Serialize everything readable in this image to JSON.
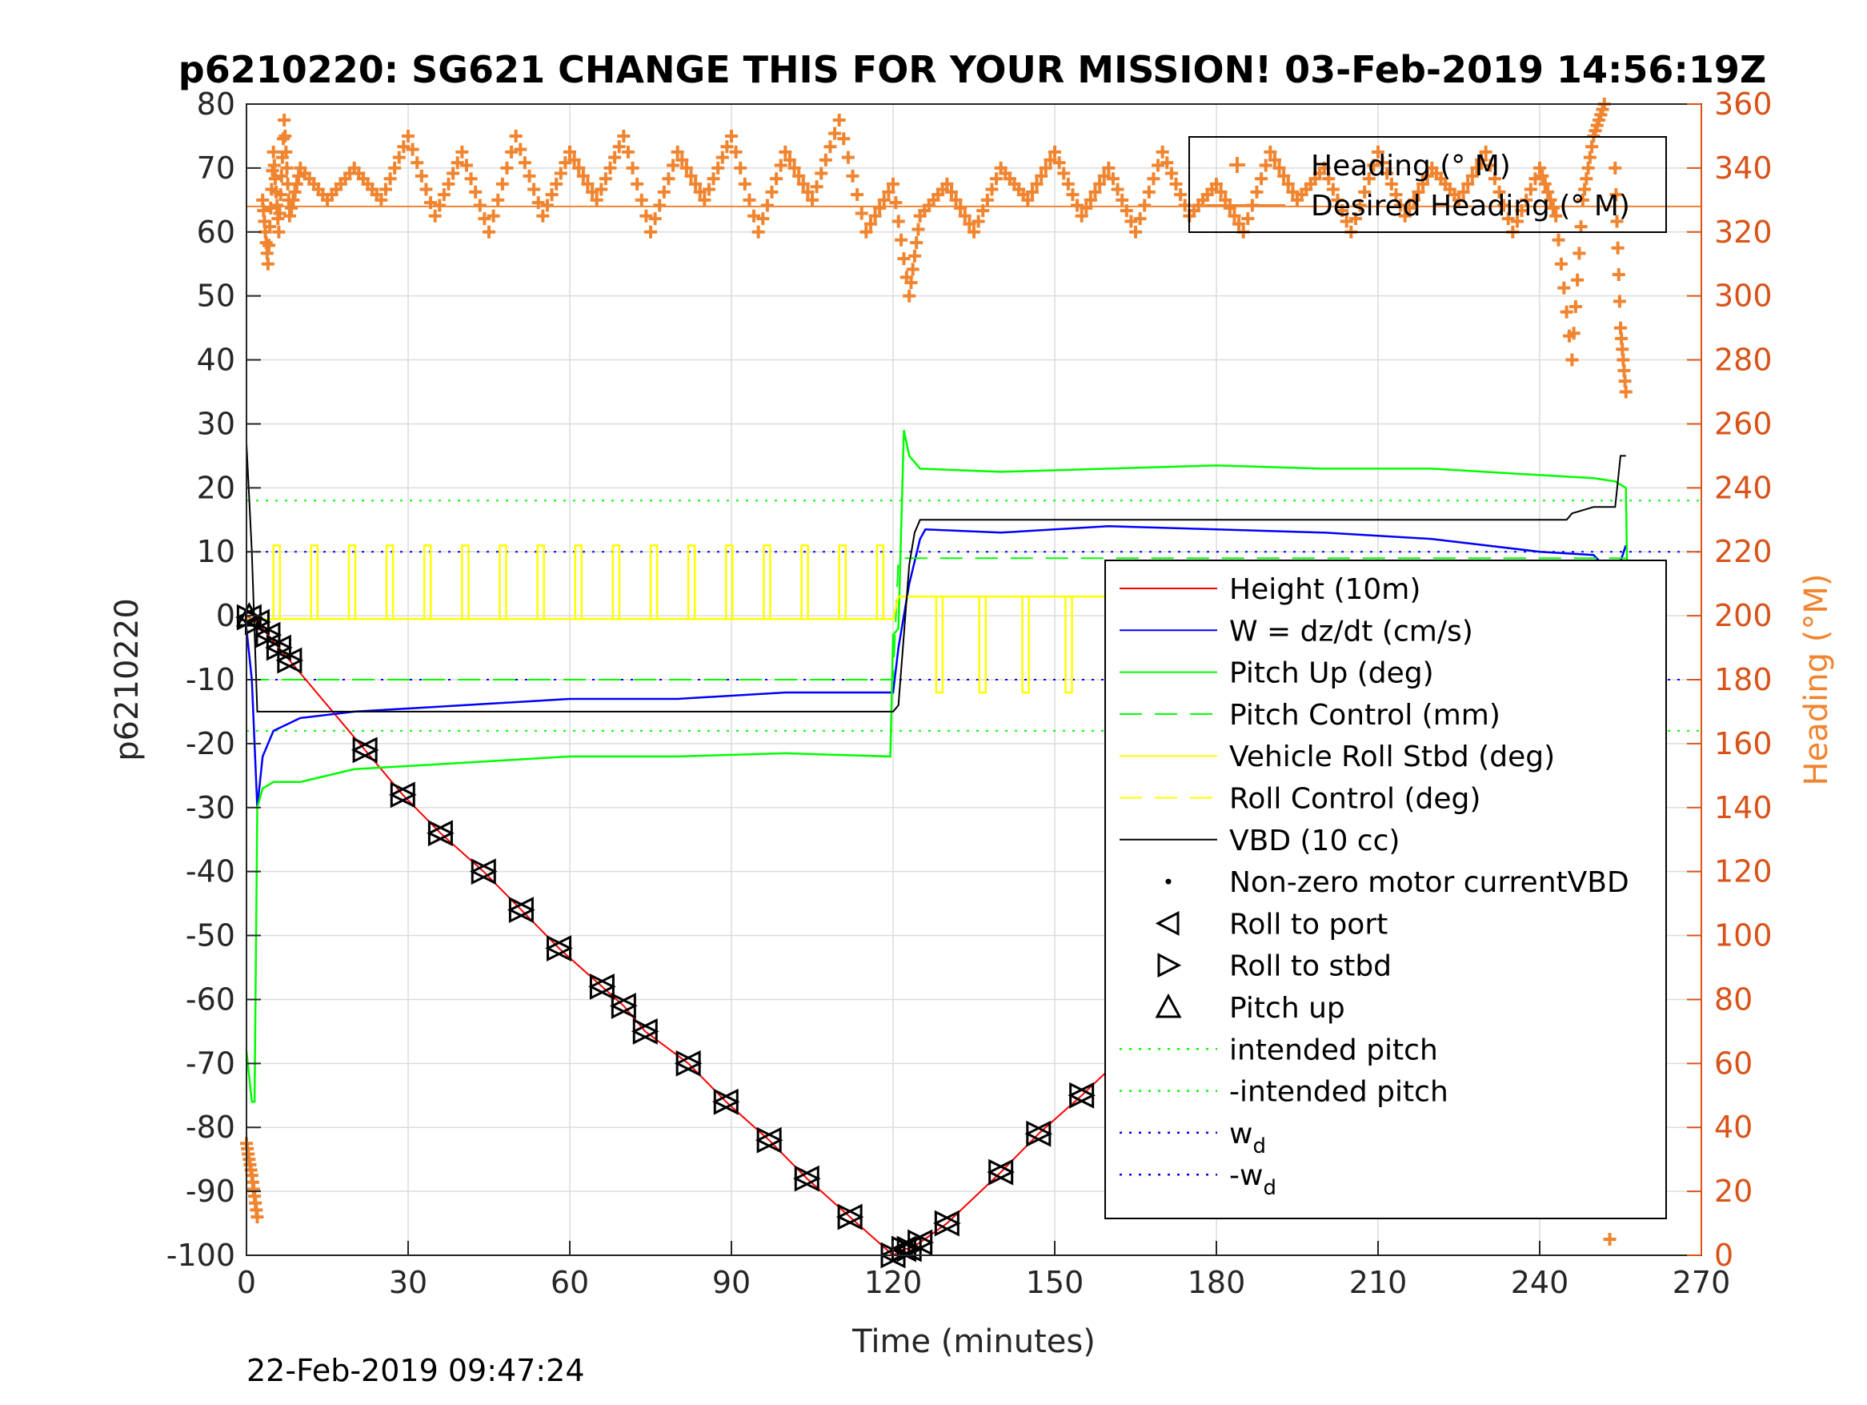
{
  "chart_data": {
    "type": "line",
    "title": "p6210220: SG621 CHANGE THIS FOR YOUR MISSION! 03-Feb-2019 14:56:19Z",
    "footer": "22-Feb-2019 09:47:24",
    "xlabel": "Time (minutes)",
    "ylabel": "p6210220",
    "ylabel_right": "Heading (°M)",
    "xlim": [
      0,
      270
    ],
    "ylim": [
      -100,
      80
    ],
    "ylim_right": [
      0,
      360
    ],
    "grid": true,
    "xticks": [
      0,
      30,
      60,
      90,
      120,
      150,
      180,
      210,
      240,
      270
    ],
    "yticks": [
      -100,
      -90,
      -80,
      -70,
      -60,
      -50,
      -40,
      -30,
      -20,
      -10,
      0,
      10,
      20,
      30,
      40,
      50,
      60,
      70,
      80
    ],
    "yticks_right": [
      0,
      20,
      40,
      60,
      80,
      100,
      120,
      140,
      160,
      180,
      200,
      220,
      240,
      260,
      280,
      300,
      320,
      340,
      360
    ],
    "colors": {
      "height": "#ff0000",
      "w": "#0000ff",
      "pitch": "#00ff00",
      "roll": "#ffff00",
      "vbd": "#000000",
      "heading": "#f0842f",
      "axis_right": "#d95319"
    },
    "legend_main": {
      "placement": "right-center",
      "entries": [
        {
          "label": "Height (10m)",
          "color": "#ff0000",
          "style": "solid"
        },
        {
          "label": "W = dz/dt (cm/s)",
          "color": "#0000ff",
          "style": "solid"
        },
        {
          "label": "Pitch Up (deg)",
          "color": "#00ff00",
          "style": "solid"
        },
        {
          "label": "Pitch Control (mm)",
          "color": "#00ff00",
          "style": "dashed"
        },
        {
          "label": "Vehicle Roll Stbd (deg)",
          "color": "#ffff00",
          "style": "solid"
        },
        {
          "label": "Roll Control (deg)",
          "color": "#ffff00",
          "style": "dashed"
        },
        {
          "label": "VBD (10 cc)",
          "color": "#000000",
          "style": "solid"
        },
        {
          "label": "Non-zero motor currentVBD",
          "color": "#000000",
          "style": "dot"
        },
        {
          "label": "Roll to port",
          "color": "#000000",
          "style": "tri-left"
        },
        {
          "label": "Roll to stbd",
          "color": "#000000",
          "style": "tri-right"
        },
        {
          "label": "Pitch up",
          "color": "#000000",
          "style": "tri-up"
        },
        {
          "label": "intended pitch",
          "color": "#00ff00",
          "style": "dotted"
        },
        {
          "label": "-intended pitch",
          "color": "#00ff00",
          "style": "dotted"
        },
        {
          "label": "w",
          "sub": "d",
          "color": "#0000ff",
          "style": "dotted"
        },
        {
          "label": "-w",
          "sub": "d",
          "color": "#0000ff",
          "style": "dotted"
        }
      ]
    },
    "legend_heading": {
      "placement": "top-right",
      "entries": [
        {
          "label": "Heading (° M)",
          "color": "#f0842f",
          "style": "plus"
        },
        {
          "label": "Desired Heading (° M)",
          "color": "#f0842f",
          "style": "solid"
        }
      ]
    },
    "series": [
      {
        "name": "Height (10m)",
        "axis": "left",
        "x": [
          0,
          2,
          4,
          6,
          8,
          22,
          29,
          36,
          44,
          51,
          58,
          66,
          70,
          74,
          82,
          89,
          97,
          104,
          112,
          120,
          122,
          123,
          125,
          130,
          140,
          147,
          155,
          165,
          177,
          187,
          200,
          208,
          216,
          223,
          230,
          233,
          235,
          242,
          246,
          250,
          254,
          256
        ],
        "y": [
          0,
          -1,
          -3,
          -5,
          -7,
          -21,
          -28,
          -34,
          -40,
          -46,
          -52,
          -58,
          -61,
          -65,
          -70,
          -76,
          -82,
          -88,
          -94,
          -100,
          -99,
          -99,
          -98,
          -95,
          -87,
          -81,
          -75,
          -67,
          -58,
          -49,
          -39,
          -33,
          -27,
          -21,
          -17,
          -15,
          -12,
          -9,
          -7,
          -4,
          -1,
          0
        ]
      },
      {
        "name": "W = dz/dt (cm/s)",
        "axis": "left",
        "x": [
          0,
          1,
          2,
          3,
          5,
          10,
          20,
          40,
          60,
          80,
          100,
          120,
          121,
          123,
          125,
          126,
          140,
          160,
          180,
          200,
          220,
          240,
          250,
          254,
          256
        ],
        "y": [
          -2,
          -10,
          -30,
          -22,
          -18,
          -16,
          -15,
          -14,
          -13,
          -13,
          -12,
          -12,
          -5,
          5,
          12,
          13.5,
          13,
          14,
          13.5,
          13,
          12,
          10,
          9.5,
          6,
          11
        ]
      },
      {
        "name": "Pitch Up (deg)",
        "axis": "left",
        "x": [
          0,
          1,
          1.5,
          2,
          3,
          5,
          10,
          20,
          40,
          60,
          80,
          100,
          119.5,
          120,
          121,
          122,
          123,
          125,
          140,
          160,
          180,
          200,
          220,
          240,
          250,
          254,
          256,
          256.5
        ],
        "y": [
          -68,
          -76,
          -76,
          -30,
          -27,
          -26,
          -26,
          -24,
          -23,
          -22,
          -22,
          -21.5,
          -22,
          -3,
          -2,
          29,
          25,
          23,
          22.5,
          23,
          23.5,
          23,
          23,
          22,
          21.5,
          21,
          20,
          -8
        ]
      },
      {
        "name": "Pitch Control (mm)",
        "axis": "left",
        "x": [
          0,
          120,
          121,
          256
        ],
        "y": [
          -10,
          -10,
          9,
          9
        ]
      },
      {
        "name": "Vehicle Roll Stbd (deg)",
        "axis": "left",
        "x": [
          0,
          120,
          121,
          256
        ],
        "y": [
          -0.5,
          -0.5,
          3,
          3
        ]
      },
      {
        "name": "Roll Control (deg)",
        "axis": "left",
        "x": [
          0,
          120,
          121,
          256
        ],
        "y": [
          -0.5,
          -0.5,
          3,
          3
        ]
      },
      {
        "name": "VBD (10 cc)",
        "axis": "left",
        "x": [
          0,
          1,
          2,
          120,
          121,
          122,
          123,
          124,
          125,
          245,
          246,
          250,
          254,
          255,
          256
        ],
        "y": [
          27,
          10,
          -15,
          -15,
          -14,
          -3,
          8,
          13,
          15,
          15,
          16,
          17,
          17,
          25,
          25
        ]
      },
      {
        "name": "Heading (° M)",
        "axis": "right",
        "x": [
          0,
          1,
          2,
          3,
          4,
          5,
          6,
          7,
          8,
          10,
          15,
          20,
          25,
          30,
          35,
          40,
          45,
          50,
          55,
          60,
          65,
          70,
          75,
          80,
          85,
          90,
          95,
          100,
          105,
          110,
          115,
          120,
          123,
          125,
          130,
          135,
          140,
          145,
          150,
          155,
          160,
          165,
          170,
          175,
          180,
          185,
          190,
          195,
          200,
          205,
          210,
          215,
          220,
          225,
          230,
          235,
          240,
          243,
          246,
          248,
          250,
          252,
          253,
          254,
          255,
          256
        ],
        "y": [
          35,
          25,
          12,
          330,
          310,
          345,
          320,
          355,
          325,
          340,
          330,
          340,
          330,
          350,
          325,
          345,
          320,
          350,
          325,
          345,
          330,
          350,
          320,
          345,
          330,
          350,
          320,
          345,
          330,
          355,
          320,
          335,
          300,
          325,
          335,
          320,
          340,
          330,
          345,
          325,
          340,
          320,
          345,
          325,
          335,
          320,
          345,
          330,
          340,
          320,
          345,
          325,
          340,
          330,
          345,
          320,
          340,
          325,
          280,
          330,
          350,
          360,
          5,
          340,
          290,
          270
        ]
      }
    ],
    "reference_lines": [
      {
        "name": "intended pitch",
        "y": 18,
        "color": "#00ff00"
      },
      {
        "name": "-intended pitch",
        "y": -18,
        "color": "#00ff00"
      },
      {
        "name": "w_d",
        "y": 10,
        "color": "#0000ff"
      },
      {
        "name": "-w_d",
        "y": -10,
        "color": "#0000ff"
      },
      {
        "name": "Desired Heading (° M)",
        "axis": "right",
        "y": 328,
        "color": "#f0842f"
      }
    ],
    "markers": {
      "roll_port_and_stbd_x": [
        0.5,
        2,
        4,
        6,
        8,
        22,
        29,
        36,
        44,
        51,
        58,
        66,
        70,
        74,
        82,
        89,
        97,
        104,
        112,
        120,
        122,
        123,
        125,
        130,
        140,
        147,
        155,
        165,
        177,
        187,
        200,
        208,
        216,
        223,
        230,
        233,
        235,
        242,
        246,
        250,
        254,
        256
      ]
    }
  }
}
